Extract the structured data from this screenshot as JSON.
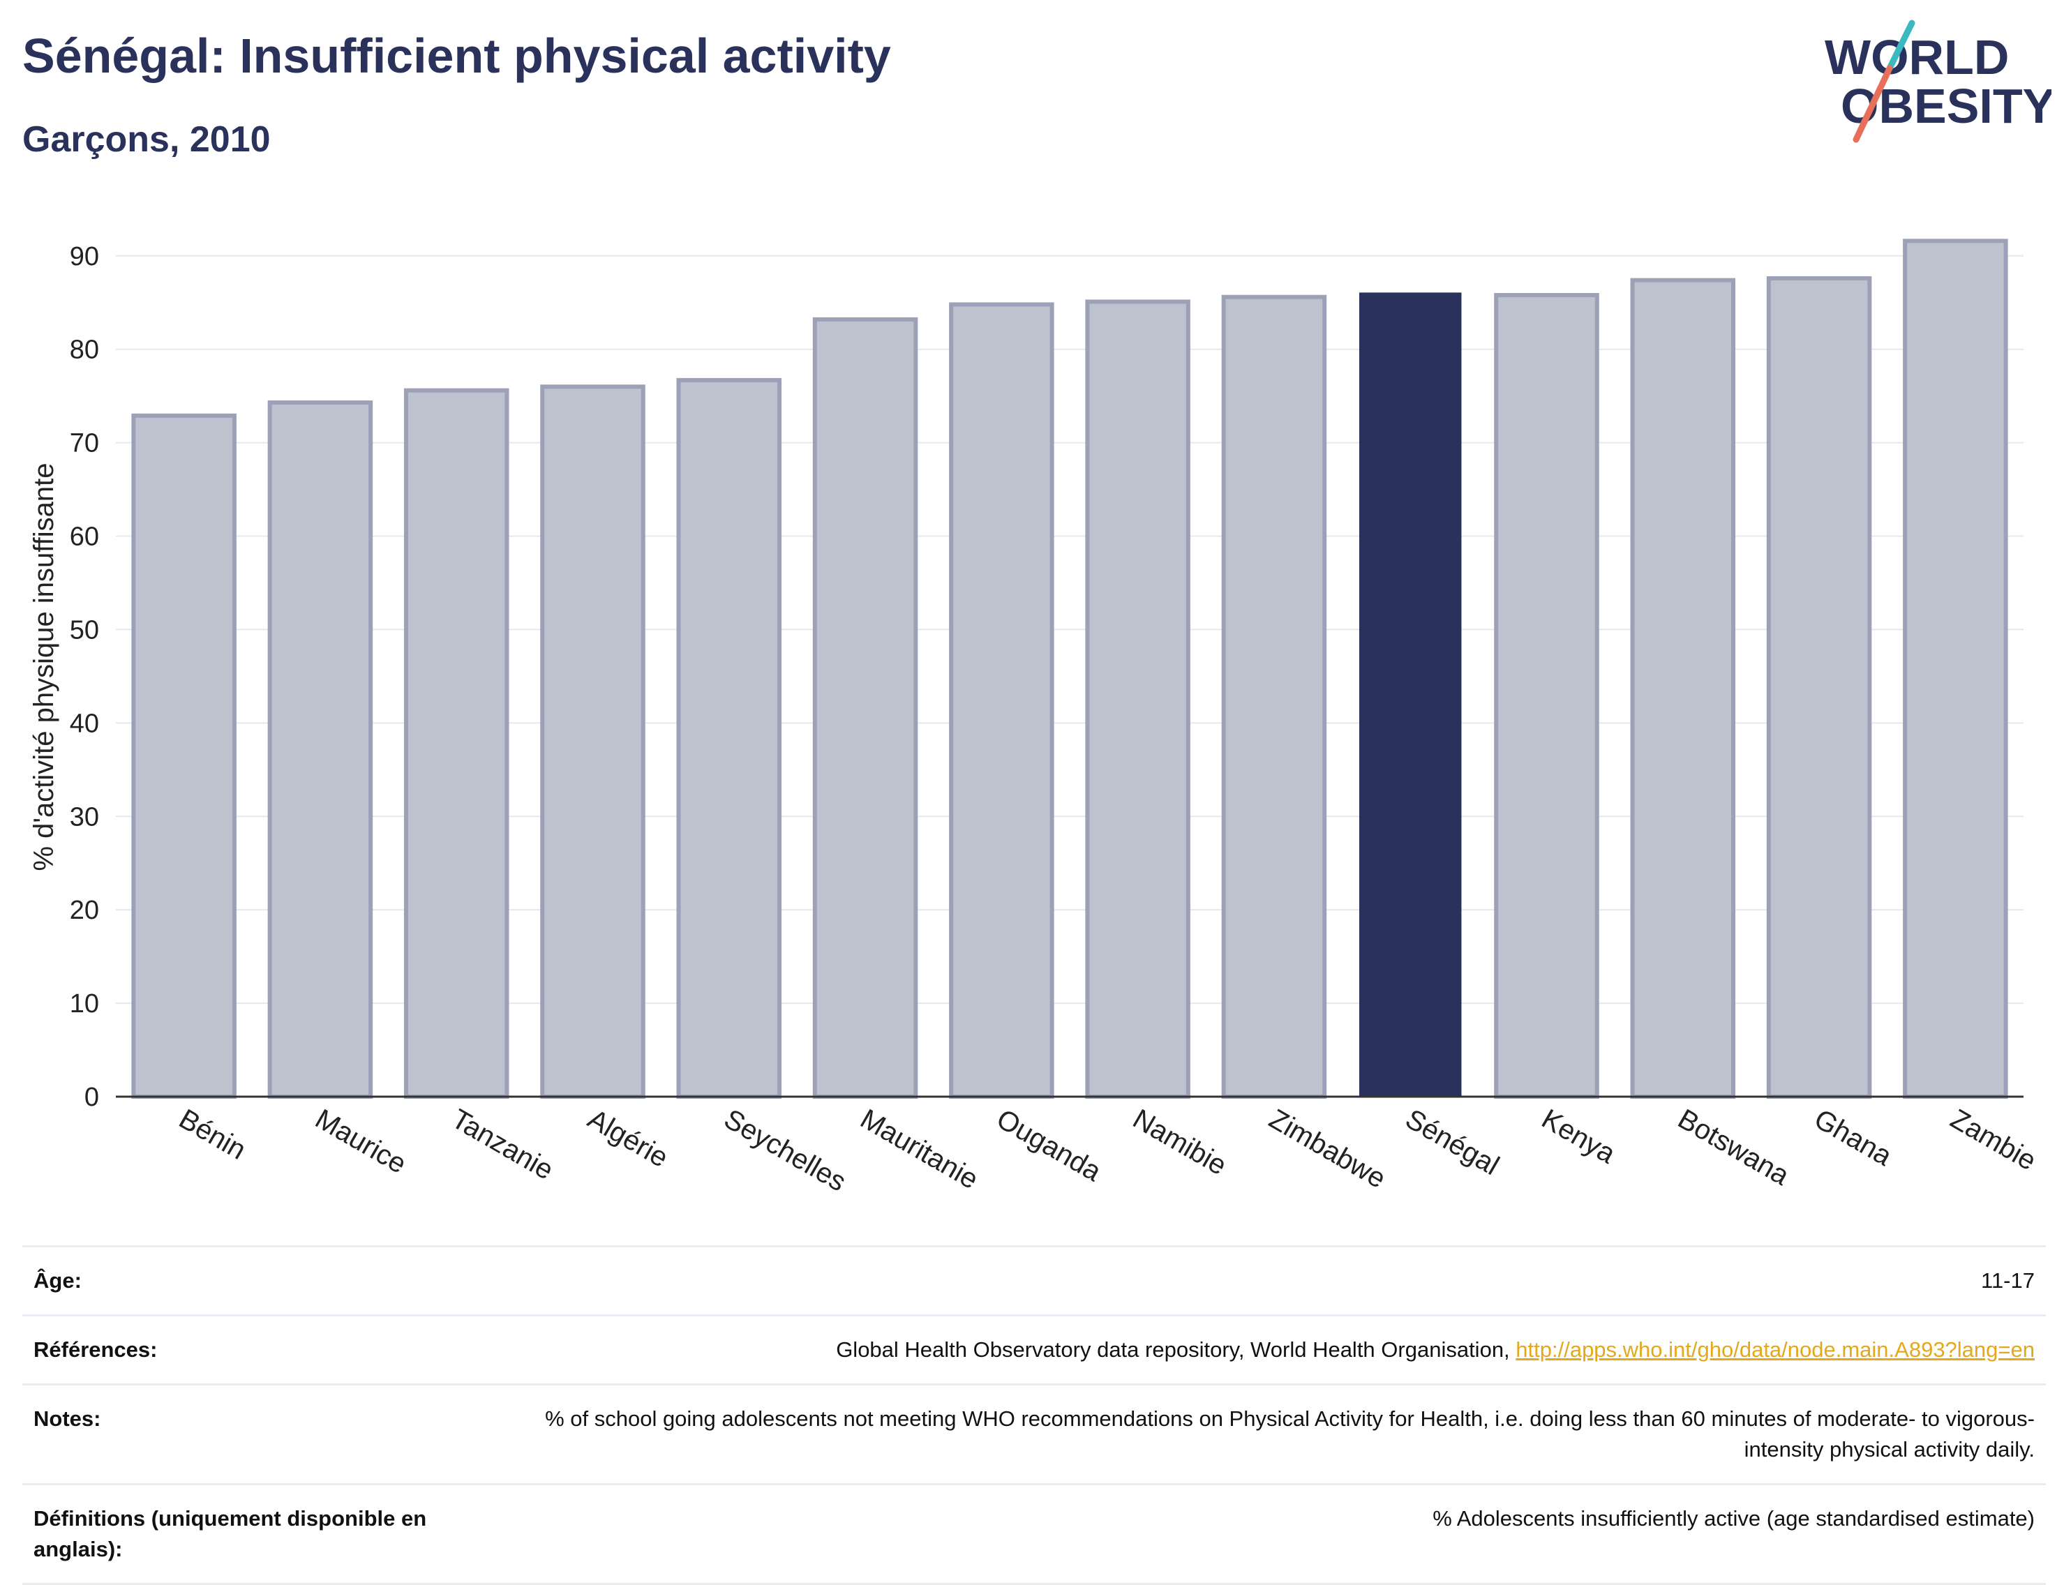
{
  "header": {
    "title": "Sénégal: Insufficient physical activity",
    "subtitle": "Garçons, 2010"
  },
  "logo": {
    "line1": "WORLD",
    "line2": "OBESITY"
  },
  "colors": {
    "highlight": "#2a325c",
    "bar_fill": "#bec2cf",
    "bar_stroke": "#9ca1b8",
    "grid": "#e6e8ee",
    "axis": "#333333",
    "link": "#e3a81b",
    "logo_teal": "#3bb8c0",
    "logo_coral": "#e8705a"
  },
  "chart_data": {
    "type": "bar",
    "title": "Sénégal: Insufficient physical activity",
    "subtitle": "Garçons, 2010",
    "xlabel": "",
    "ylabel": "% d'activité physique insuffisante",
    "ylim": [
      0,
      92
    ],
    "yticks": [
      0,
      10,
      20,
      30,
      40,
      50,
      60,
      70,
      80,
      90
    ],
    "grid": true,
    "highlight_category": "Sénégal",
    "categories": [
      "Bénin",
      "Maurice",
      "Tanzanie",
      "Algérie",
      "Seychelles",
      "Mauritanie",
      "Ouganda",
      "Namibie",
      "Zimbabwe",
      "Sénégal",
      "Kenya",
      "Botswana",
      "Ghana",
      "Zambie"
    ],
    "values": [
      72.9,
      74.3,
      75.6,
      76.0,
      76.7,
      83.2,
      84.8,
      85.1,
      85.6,
      86.0,
      85.8,
      87.4,
      87.6,
      91.6
    ]
  },
  "meta": [
    {
      "key": "Âge:",
      "value": "11-17"
    },
    {
      "key": "Références:",
      "value": "Global Health Observatory data repository, World Health Organisation, ",
      "link": "http://apps.who.int/gho/data/node.main.A893?lang=en"
    },
    {
      "key": "Notes:",
      "value": "% of school going adolescents not meeting WHO recommendations on Physical Activity for Health, i.e. doing less than 60 minutes of moderate- to vigorous-intensity physical activity daily."
    },
    {
      "key": "Définitions (uniquement disponible en anglais):",
      "value": "% Adolescents insufficiently active (age standardised estimate)"
    }
  ]
}
